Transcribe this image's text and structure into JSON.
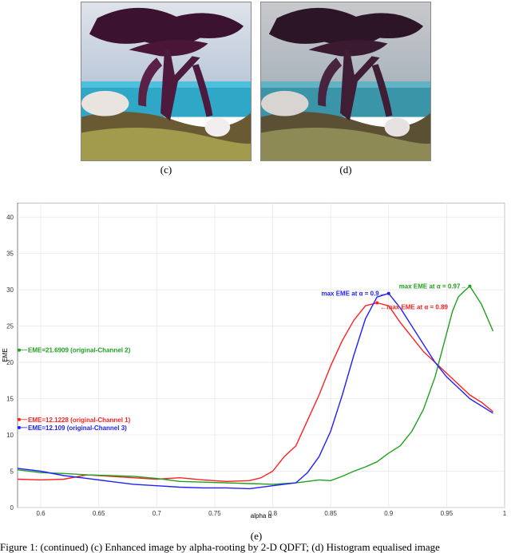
{
  "figure": {
    "subfigures": [
      {
        "label": "(c)"
      },
      {
        "label": "(d)"
      }
    ],
    "chart_label": "(e)",
    "caption": "Figure 1: (continued) (c) Enhanced image by alpha-rooting by 2-D QDFT; (d) Histogram equalised image"
  },
  "colors": {
    "channel1": "#ff2020",
    "channel2": "#1fa01f",
    "channel3": "#2020ff",
    "grid": "#e6e6e6"
  },
  "chart_data": {
    "type": "line",
    "xlabel": "alpha α",
    "ylabel": "EME",
    "xlim": [
      0.58,
      1.0
    ],
    "ylim": [
      0,
      42
    ],
    "xticks": [
      "0.6",
      "0.65",
      "0.7",
      "0.75",
      "0.8",
      "0.85",
      "0.9",
      "0.95",
      "1"
    ],
    "yticks": [
      "0",
      "5",
      "10",
      "15",
      "20",
      "25",
      "30",
      "35",
      "40"
    ],
    "grid": true,
    "series": [
      {
        "color": "#ff2020",
        "x": [
          0.58,
          0.6,
          0.62,
          0.64,
          0.66,
          0.68,
          0.7,
          0.72,
          0.74,
          0.76,
          0.78,
          0.79,
          0.8,
          0.81,
          0.82,
          0.83,
          0.84,
          0.85,
          0.86,
          0.87,
          0.88,
          0.89,
          0.9,
          0.91,
          0.92,
          0.93,
          0.94,
          0.95,
          0.96,
          0.97,
          0.98,
          0.99
        ],
        "y": [
          3.9,
          3.8,
          3.9,
          4.5,
          4.3,
          4.1,
          3.9,
          4.1,
          3.8,
          3.6,
          3.7,
          4.1,
          5.0,
          7.0,
          8.5,
          12.0,
          15.5,
          19.5,
          23.0,
          25.8,
          27.8,
          28.2,
          27.8,
          25.5,
          23.5,
          21.5,
          20.0,
          18.5,
          17.0,
          15.5,
          14.5,
          13.2
        ]
      },
      {
        "color": "#1fa01f",
        "x": [
          0.58,
          0.6,
          0.62,
          0.64,
          0.66,
          0.68,
          0.7,
          0.72,
          0.74,
          0.76,
          0.78,
          0.8,
          0.82,
          0.84,
          0.85,
          0.86,
          0.87,
          0.88,
          0.89,
          0.9,
          0.91,
          0.92,
          0.93,
          0.94,
          0.95,
          0.955,
          0.96,
          0.965,
          0.97,
          0.98,
          0.99
        ],
        "y": [
          5.2,
          4.8,
          4.7,
          4.5,
          4.4,
          4.3,
          4.0,
          3.6,
          3.5,
          3.4,
          3.3,
          3.2,
          3.4,
          3.8,
          3.7,
          4.3,
          5.0,
          5.6,
          6.3,
          7.5,
          8.5,
          10.5,
          13.5,
          18.0,
          24.0,
          27.0,
          29.0,
          29.8,
          30.5,
          28.0,
          24.3
        ]
      },
      {
        "color": "#2020ff",
        "x": [
          0.58,
          0.6,
          0.62,
          0.64,
          0.66,
          0.68,
          0.7,
          0.72,
          0.74,
          0.76,
          0.78,
          0.8,
          0.82,
          0.83,
          0.84,
          0.85,
          0.86,
          0.87,
          0.88,
          0.89,
          0.9,
          0.91,
          0.92,
          0.93,
          0.94,
          0.95,
          0.96,
          0.97,
          0.98,
          0.99
        ],
        "y": [
          5.4,
          5.0,
          4.4,
          4.0,
          3.6,
          3.2,
          3.0,
          2.8,
          2.7,
          2.7,
          2.6,
          3.0,
          3.4,
          4.8,
          7.0,
          10.5,
          15.5,
          21.0,
          26.0,
          29.0,
          29.5,
          27.5,
          25.0,
          22.5,
          20.0,
          18.0,
          16.5,
          15.0,
          14.0,
          13.0
        ]
      }
    ],
    "annotations": [
      {
        "text": "EME=21.6909 (original-Channel 2)",
        "y": 21.69,
        "color": "#1fa01f"
      },
      {
        "text": "EME=12.1228 (original-Channel 1)",
        "y": 12.12,
        "color": "#ff2020"
      },
      {
        "text": "EME=12.109 (original-Channel 3)",
        "y": 12.11,
        "color": "#2020ff"
      },
      {
        "text": "max EME at α = 0.9→",
        "x": 0.9,
        "y": 29.5,
        "color": "#2020ff"
      },
      {
        "text": "max EME at α = 0.97→",
        "x": 0.97,
        "y": 30.5,
        "color": "#1fa01f"
      },
      {
        "text": "←max EME at α = 0.89",
        "x": 0.89,
        "y": 28.2,
        "color": "#ff2020"
      }
    ]
  }
}
